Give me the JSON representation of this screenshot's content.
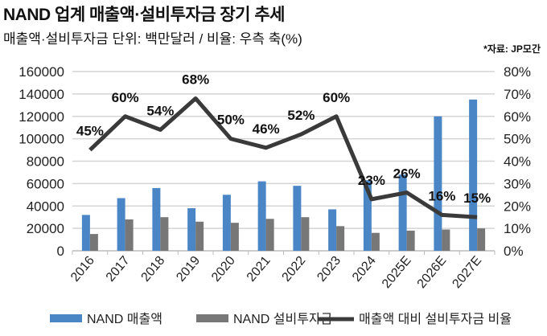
{
  "title": "NAND 업계 매출액·설비투자금 장기 추세",
  "subtitle": "매출액·설비투자금 단위: 백만달러 / 비율: 우측 축(%)",
  "source": "*자료: JP모간",
  "chart_data": {
    "type": "bar",
    "categories": [
      "2016",
      "2017",
      "2018",
      "2019",
      "2020",
      "2021",
      "2022",
      "2023",
      "2024",
      "2025E",
      "2026E",
      "2027E"
    ],
    "series": [
      {
        "name": "NAND 매출액",
        "type": "bar",
        "axis": "left",
        "color": "#4a86c5",
        "values": [
          32000,
          47000,
          56000,
          38000,
          50000,
          62000,
          58000,
          37000,
          63000,
          68000,
          120000,
          135000
        ]
      },
      {
        "name": "NAND 설비투자금",
        "type": "bar",
        "axis": "left",
        "color": "#777777",
        "values": [
          15000,
          28000,
          30000,
          26000,
          25000,
          28500,
          30000,
          22000,
          16000,
          18000,
          19000,
          20000
        ]
      },
      {
        "name": "매출액 대비 설비투자금 비율",
        "type": "line",
        "axis": "right",
        "color": "#3a3a3a",
        "values": [
          45,
          60,
          54,
          68,
          50,
          46,
          52,
          60,
          23,
          26,
          16,
          15
        ],
        "labels": [
          "45%",
          "60%",
          "54%",
          "68%",
          "50%",
          "46%",
          "52%",
          "60%",
          "23%",
          "26%",
          "16%",
          "15%"
        ]
      }
    ],
    "left_axis": {
      "ylim": [
        0,
        160000
      ],
      "ticks": [
        "0",
        "20000",
        "40000",
        "60000",
        "80000",
        "100000",
        "120000",
        "140000",
        "160000"
      ]
    },
    "right_axis": {
      "ylim": [
        0,
        80
      ],
      "ticks": [
        "0%",
        "10%",
        "20%",
        "30%",
        "40%",
        "50%",
        "60%",
        "70%",
        "80%"
      ]
    },
    "grid": true,
    "legend_placement": "bottom"
  }
}
